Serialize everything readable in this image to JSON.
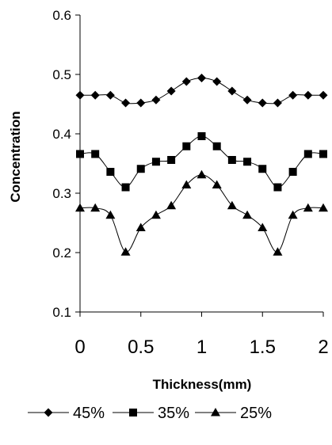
{
  "chart_data": {
    "type": "line",
    "xlabel": "Thickness(mm)",
    "ylabel": "Concentration",
    "xlim": [
      0,
      2
    ],
    "ylim": [
      0.1,
      0.6
    ],
    "x_ticks": [
      "0",
      "0.5",
      "1",
      "1.5",
      "2"
    ],
    "y_ticks": [
      "0.1",
      "0.2",
      "0.3",
      "0.4",
      "0.5",
      "0.6"
    ],
    "grid": false,
    "legend_position": "bottom",
    "x": [
      0,
      0.125,
      0.25,
      0.375,
      0.5,
      0.625,
      0.75,
      0.875,
      1,
      1.125,
      1.25,
      1.375,
      1.5,
      1.625,
      1.75,
      1.875,
      2
    ],
    "series": [
      {
        "name": "45%",
        "marker": "diamond",
        "values": [
          0.465,
          0.465,
          0.465,
          0.452,
          0.452,
          0.457,
          0.472,
          0.488,
          0.494,
          0.488,
          0.472,
          0.457,
          0.452,
          0.452,
          0.465,
          0.465,
          0.465
        ]
      },
      {
        "name": "35%",
        "marker": "square",
        "values": [
          0.366,
          0.366,
          0.336,
          0.31,
          0.341,
          0.353,
          0.356,
          0.379,
          0.396,
          0.379,
          0.356,
          0.353,
          0.341,
          0.31,
          0.336,
          0.366,
          0.366
        ]
      },
      {
        "name": "25%",
        "marker": "triangle",
        "values": [
          0.275,
          0.275,
          0.263,
          0.201,
          0.242,
          0.263,
          0.279,
          0.314,
          0.331,
          0.314,
          0.279,
          0.263,
          0.242,
          0.201,
          0.263,
          0.275,
          0.275
        ]
      }
    ]
  }
}
